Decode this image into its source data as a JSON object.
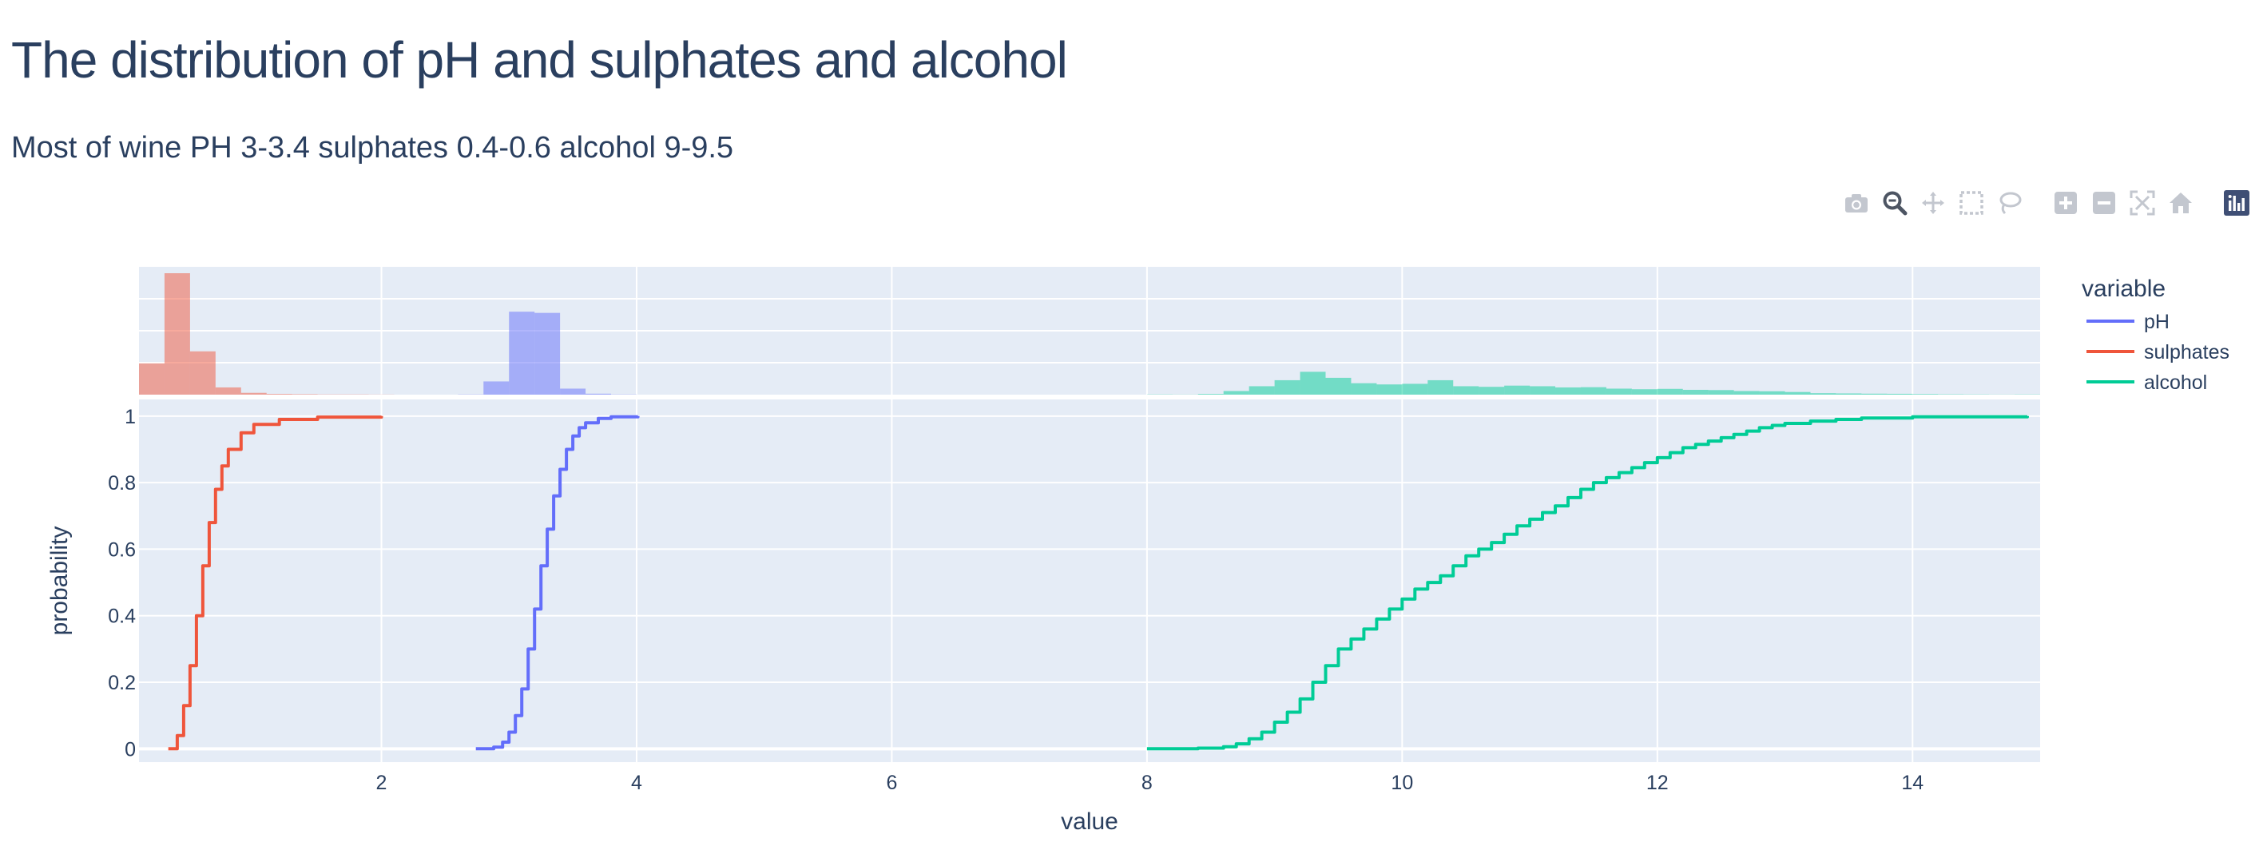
{
  "title": "The distribution of pH and sulphates and alcohol",
  "subtitle": "Most of wine PH 3-3.4 sulphates 0.4-0.6 alcohol 9-9.5",
  "modebar": [
    {
      "name": "camera-icon",
      "label": "Download plot as a png"
    },
    {
      "name": "zoom-icon",
      "label": "Zoom"
    },
    {
      "name": "pan-icon",
      "label": "Pan"
    },
    {
      "name": "box-select-icon",
      "label": "Box Select"
    },
    {
      "name": "lasso-select-icon",
      "label": "Lasso Select"
    },
    {
      "name": "zoom-in-icon",
      "label": "Zoom in"
    },
    {
      "name": "zoom-out-icon",
      "label": "Zoom out"
    },
    {
      "name": "autoscale-icon",
      "label": "Autoscale"
    },
    {
      "name": "reset-axes-icon",
      "label": "Reset axes"
    },
    {
      "name": "plotly-logo-icon",
      "label": "Produced with Plotly"
    }
  ],
  "colors": {
    "pH": "#636efa",
    "sulphates": "#ef553b",
    "alcohol": "#00cc96",
    "plot_bg": "#e5ecf6",
    "text": "#2a3f5f"
  },
  "chart_data": {
    "type": "line",
    "subtype": "ecdf with marginal histogram",
    "xlabel": "value",
    "ylabel": "probability",
    "xlim": [
      0.1,
      15.0
    ],
    "ylim": [
      -0.04,
      1.05
    ],
    "x_ticks": [
      2,
      4,
      6,
      8,
      10,
      12,
      14
    ],
    "y_ticks": [
      0,
      0.2,
      0.4,
      0.6,
      0.8,
      1
    ],
    "y_tick_labels": [
      "0",
      "0.2",
      "0.4",
      "0.6",
      "0.8",
      "1"
    ],
    "grid": true,
    "legend": {
      "title": "variable",
      "position": "right-top",
      "entries": [
        "pH",
        "sulphates",
        "alcohol"
      ]
    },
    "series": [
      {
        "name": "pH",
        "x": [
          2.74,
          2.88,
          2.95,
          3.0,
          3.05,
          3.1,
          3.15,
          3.2,
          3.25,
          3.3,
          3.35,
          3.4,
          3.45,
          3.5,
          3.55,
          3.6,
          3.7,
          3.8,
          4.01
        ],
        "y": [
          0,
          0.005,
          0.02,
          0.05,
          0.1,
          0.18,
          0.3,
          0.42,
          0.55,
          0.66,
          0.76,
          0.84,
          0.9,
          0.94,
          0.965,
          0.98,
          0.993,
          0.998,
          1.0
        ]
      },
      {
        "name": "sulphates",
        "x": [
          0.33,
          0.4,
          0.45,
          0.5,
          0.55,
          0.6,
          0.65,
          0.7,
          0.75,
          0.8,
          0.9,
          1.0,
          1.2,
          1.5,
          2.0
        ],
        "y": [
          0,
          0.04,
          0.13,
          0.25,
          0.4,
          0.55,
          0.68,
          0.78,
          0.85,
          0.9,
          0.95,
          0.975,
          0.99,
          0.997,
          1.0
        ]
      },
      {
        "name": "alcohol",
        "x": [
          8.0,
          8.4,
          8.6,
          8.7,
          8.8,
          8.9,
          9.0,
          9.1,
          9.2,
          9.3,
          9.4,
          9.5,
          9.6,
          9.7,
          9.8,
          9.9,
          10.0,
          10.1,
          10.2,
          10.3,
          10.4,
          10.5,
          10.6,
          10.7,
          10.8,
          10.9,
          11.0,
          11.1,
          11.2,
          11.3,
          11.4,
          11.5,
          11.6,
          11.7,
          11.8,
          11.9,
          12.0,
          12.1,
          12.2,
          12.3,
          12.4,
          12.5,
          12.6,
          12.7,
          12.8,
          12.9,
          13.0,
          13.2,
          13.4,
          13.6,
          14.0,
          14.9
        ],
        "y": [
          0,
          0.002,
          0.006,
          0.015,
          0.03,
          0.05,
          0.08,
          0.11,
          0.15,
          0.2,
          0.25,
          0.3,
          0.33,
          0.36,
          0.39,
          0.42,
          0.45,
          0.48,
          0.5,
          0.52,
          0.55,
          0.58,
          0.6,
          0.62,
          0.645,
          0.67,
          0.69,
          0.71,
          0.73,
          0.755,
          0.78,
          0.8,
          0.815,
          0.83,
          0.845,
          0.86,
          0.875,
          0.89,
          0.905,
          0.915,
          0.925,
          0.935,
          0.945,
          0.955,
          0.965,
          0.972,
          0.978,
          0.985,
          0.99,
          0.994,
          0.998,
          1.0
        ]
      }
    ],
    "marginal_histograms": [
      {
        "name": "pH",
        "bin_edges": [
          2.6,
          2.8,
          3.0,
          3.2,
          3.4,
          3.6,
          3.8,
          4.0
        ],
        "counts": [
          2,
          110,
          690,
          680,
          50,
          8,
          2
        ]
      },
      {
        "name": "sulphates",
        "bin_edges": [
          0.1,
          0.3,
          0.5,
          0.7,
          0.9,
          1.1,
          1.3,
          1.5,
          1.7,
          1.9,
          2.1
        ],
        "counts": [
          260,
          1010,
          360,
          60,
          15,
          6,
          4,
          2,
          2,
          1
        ]
      },
      {
        "name": "alcohol",
        "bin_edges": [
          8.0,
          8.2,
          8.4,
          8.6,
          8.8,
          9.0,
          9.2,
          9.4,
          9.6,
          9.8,
          10.0,
          10.2,
          10.4,
          10.6,
          10.8,
          11.0,
          11.2,
          11.4,
          11.6,
          11.8,
          12.0,
          12.2,
          12.4,
          12.6,
          12.8,
          13.0,
          13.2,
          13.4,
          13.6,
          13.8,
          14.0,
          14.2,
          14.4,
          14.6,
          14.8,
          15.0
        ],
        "counts": [
          2,
          1,
          6,
          30,
          70,
          120,
          190,
          140,
          95,
          85,
          90,
          120,
          70,
          65,
          75,
          70,
          60,
          62,
          50,
          45,
          48,
          40,
          38,
          30,
          28,
          22,
          12,
          10,
          8,
          7,
          5,
          3,
          2,
          1,
          2
        ]
      }
    ]
  }
}
